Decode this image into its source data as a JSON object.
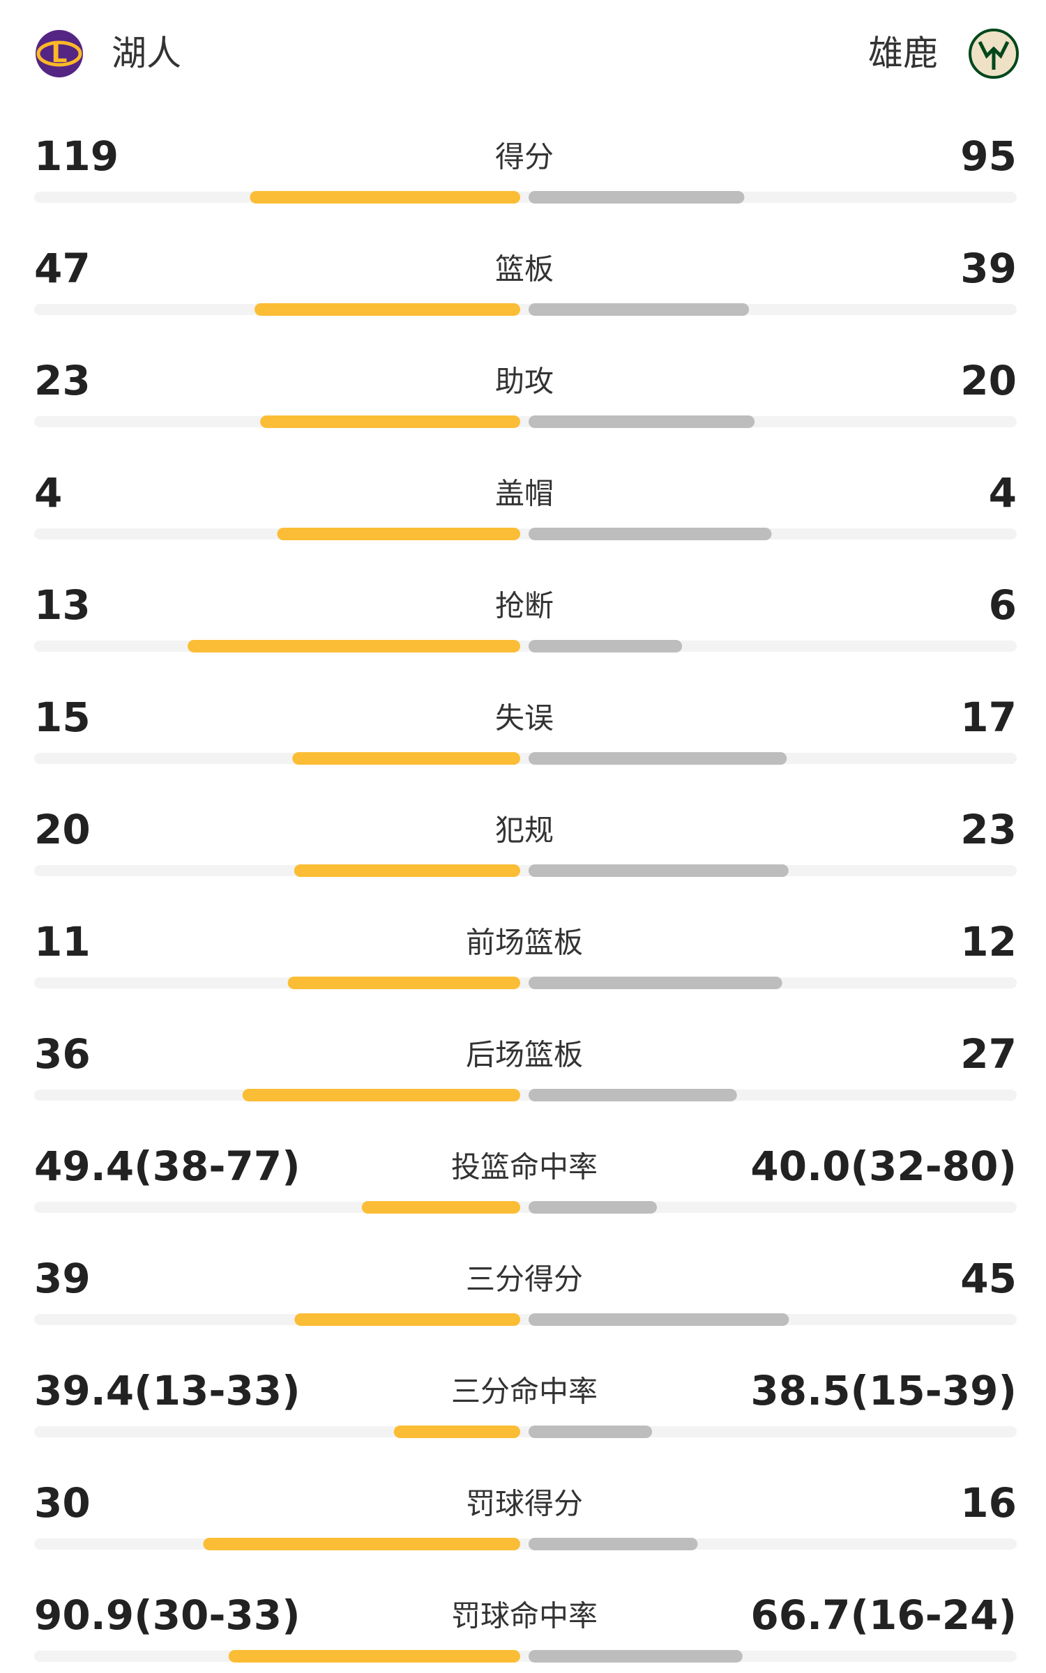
{
  "header": {
    "home": "湖人",
    "away": "雄鹿"
  },
  "rows": [
    {
      "label": "得分",
      "home": 119,
      "away": 95
    },
    {
      "label": "篮板",
      "home": 47,
      "away": 39
    },
    {
      "label": "助攻",
      "home": 23,
      "away": 20
    },
    {
      "label": "盖帽",
      "home": 4,
      "away": 4
    },
    {
      "label": "抢断",
      "home": 13,
      "away": 6
    },
    {
      "label": "失误",
      "home": 15,
      "away": 17
    },
    {
      "label": "犯规",
      "home": 20,
      "away": 23
    },
    {
      "label": "前场篮板",
      "home": 11,
      "away": 12
    },
    {
      "label": "后场篮板",
      "home": 36,
      "away": 27
    },
    {
      "label": "投篮命中率",
      "home": {
        "value": 49.4,
        "label": "49.4(38-77)"
      },
      "away": {
        "value": 40.0,
        "label": "40.0(32-80)"
      }
    },
    {
      "label": "三分得分",
      "home": 39,
      "away": 45
    },
    {
      "label": "三分命中率",
      "home": {
        "value": 39.4,
        "label": "39.4(13-33)"
      },
      "away": {
        "value": 38.5,
        "label": "38.5(15-39)"
      }
    },
    {
      "label": "罚球得分",
      "home": 30,
      "away": 16
    },
    {
      "label": "罚球命中率",
      "home": {
        "value": 90.9,
        "label": "90.9(30-33)"
      },
      "away": {
        "value": 66.7,
        "label": "66.7(16-24)"
      }
    }
  ]
}
